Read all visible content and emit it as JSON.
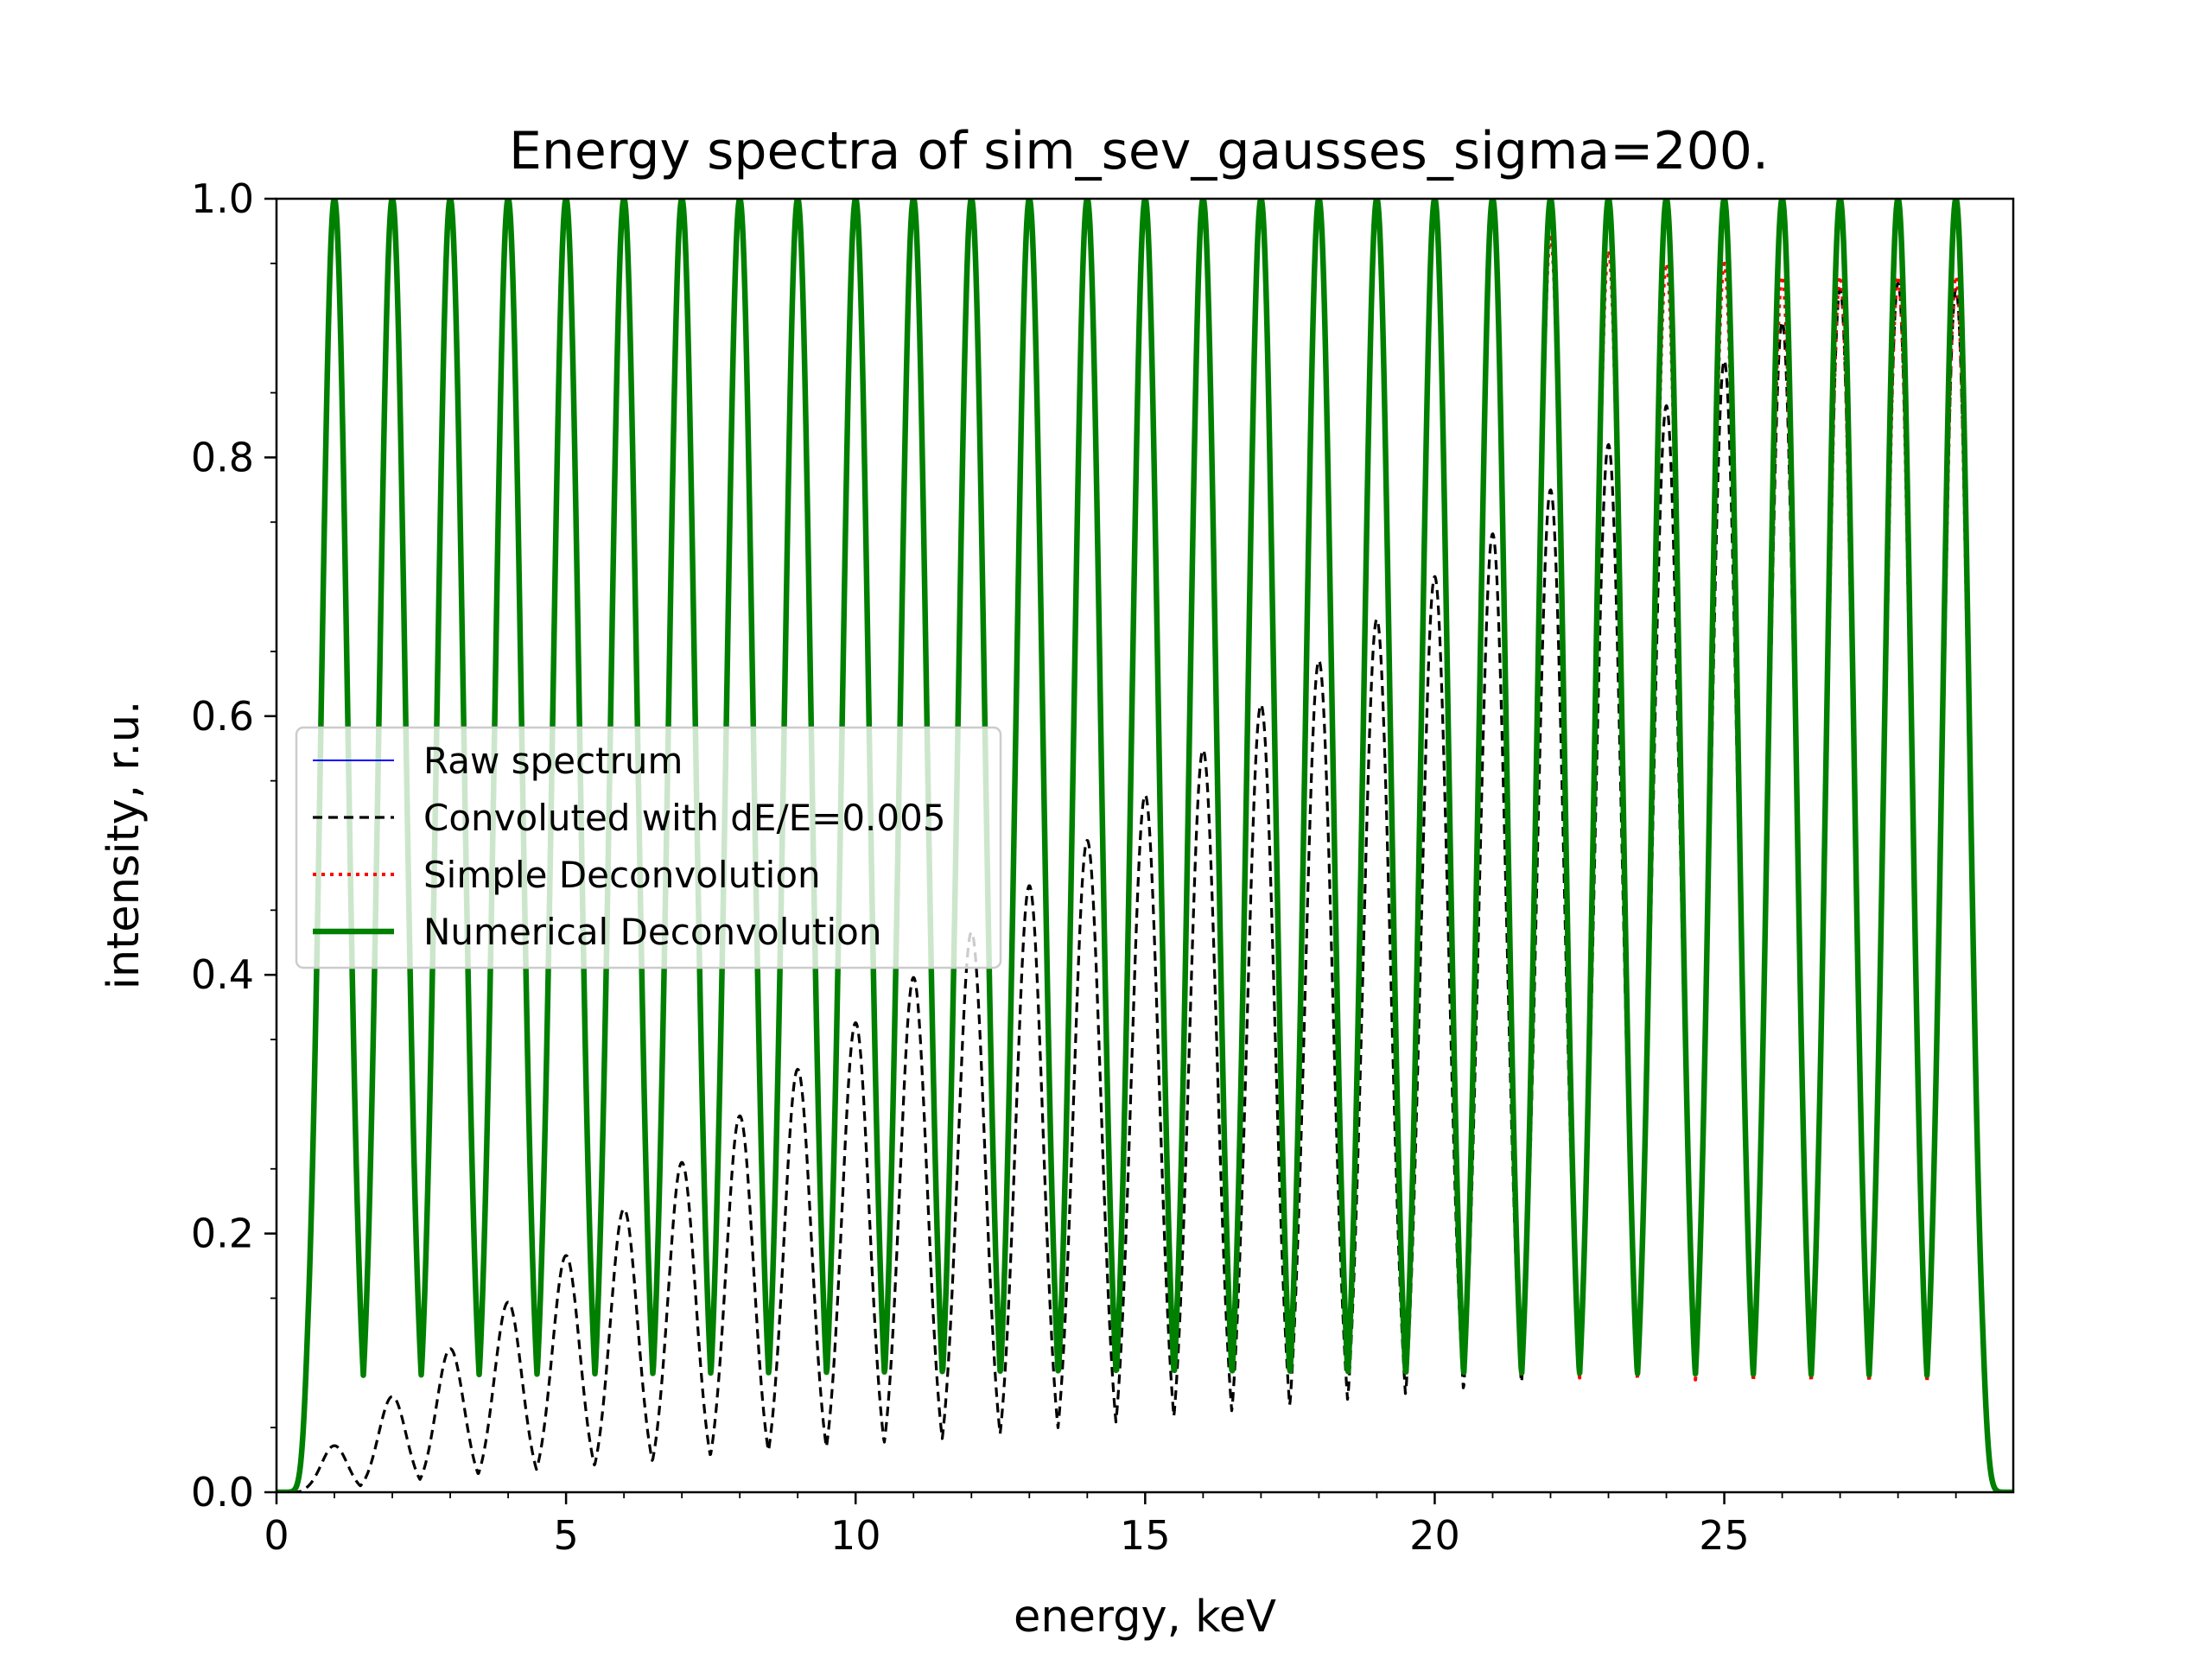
{
  "chart_data": {
    "type": "line",
    "title": "Energy spectra of sim_sev_gausses_sigma=200.",
    "xlabel": "energy, keV",
    "ylabel": "intensity, r.u.",
    "xlim": [
      0,
      29.99
    ],
    "ylim": [
      0,
      1.0
    ],
    "x_ticks": [
      0,
      5,
      10,
      15,
      20,
      25
    ],
    "x_tick_labels": [
      "0",
      "5",
      "10",
      "15",
      "20",
      "25"
    ],
    "y_ticks": [
      0.0,
      0.2,
      0.4,
      0.6,
      0.8,
      1.0
    ],
    "y_tick_labels": [
      "0.0",
      "0.2",
      "0.4",
      "0.6",
      "0.8",
      "1.0"
    ],
    "grid": false,
    "legend_position": "center-left",
    "peak_centers_keV": [
      1,
      2,
      3,
      4,
      5,
      6,
      7,
      8,
      9,
      10,
      11,
      12,
      13,
      14,
      15,
      16,
      17,
      18,
      19,
      20,
      21,
      22,
      23,
      24,
      25,
      26,
      27,
      28,
      29
    ],
    "raw_valley_level": 0.09,
    "series": [
      {
        "name": "Raw spectrum",
        "color": "#0000ff",
        "style": "solid-thin",
        "peak_heights": [
          1,
          1,
          1,
          1,
          1,
          1,
          1,
          1,
          1,
          1,
          1,
          1,
          1,
          1,
          1,
          1,
          1,
          1,
          1,
          1,
          1,
          1,
          1,
          1,
          1,
          1,
          1,
          1,
          1
        ]
      },
      {
        "name": "Convoluted with dE/E=0.005",
        "color": "#000000",
        "style": "dashed",
        "peak_heights": [
          0.036,
          0.074,
          0.111,
          0.147,
          0.183,
          0.219,
          0.255,
          0.291,
          0.327,
          0.363,
          0.398,
          0.433,
          0.469,
          0.504,
          0.539,
          0.574,
          0.609,
          0.643,
          0.675,
          0.708,
          0.741,
          0.775,
          0.81,
          0.84,
          0.875,
          0.905,
          0.93,
          0.935,
          0.93
        ],
        "valley_levels": [
          0.003,
          0.008,
          0.012,
          0.016,
          0.019,
          0.022,
          0.026,
          0.03,
          0.033,
          0.036,
          0.04,
          0.043,
          0.047,
          0.052,
          0.056,
          0.06,
          0.064,
          0.068,
          0.072,
          0.076,
          0.08,
          0.084,
          0.088,
          0.09,
          0.09,
          0.09,
          0.09,
          0.09,
          0.09
        ]
      },
      {
        "name": "Simple Deconvolution",
        "color": "#ff0000",
        "style": "dotted",
        "peak_heights": [
          1,
          1,
          1,
          1,
          1,
          1,
          1,
          1,
          1,
          1,
          1,
          1,
          1,
          1,
          1,
          1,
          1,
          1,
          1,
          1,
          1,
          0.97,
          0.96,
          0.95,
          0.95,
          0.94,
          0.94,
          0.94,
          0.94
        ]
      },
      {
        "name": "Numerical Deconvolution",
        "color": "#008000",
        "style": "solid-thick",
        "peak_heights": [
          1,
          1,
          1,
          1,
          1,
          1,
          1,
          1,
          1,
          1,
          1,
          1,
          1,
          1,
          1,
          1,
          1,
          1,
          1,
          1,
          1,
          1,
          1,
          1,
          1,
          1,
          1,
          1,
          1
        ]
      }
    ]
  }
}
